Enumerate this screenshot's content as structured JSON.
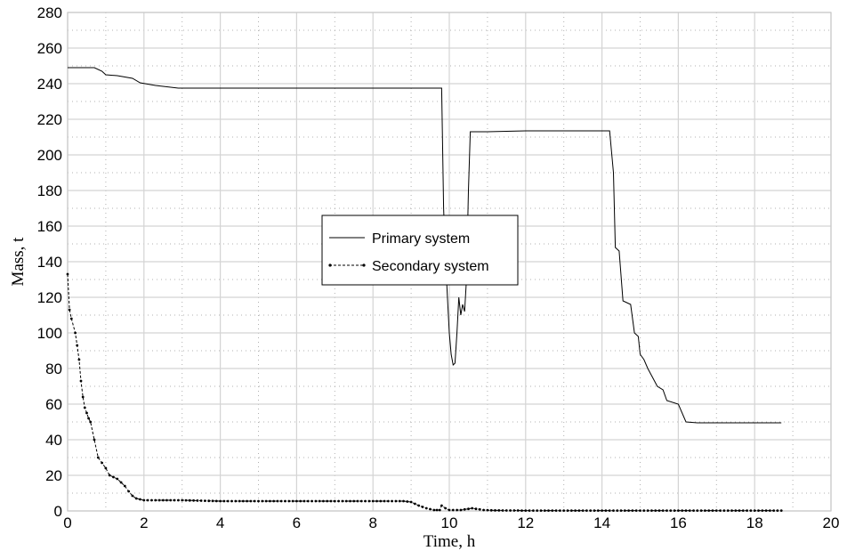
{
  "chart_data": {
    "type": "line",
    "title": "",
    "xlabel": "Time, h",
    "ylabel": "Mass, t",
    "xlim": [
      0,
      20
    ],
    "ylim": [
      0,
      280
    ],
    "xticks": [
      0,
      2,
      4,
      6,
      8,
      10,
      12,
      14,
      16,
      18,
      20
    ],
    "yticks": [
      0,
      20,
      40,
      60,
      80,
      100,
      120,
      140,
      160,
      180,
      200,
      220,
      240,
      260,
      280
    ],
    "grid": true,
    "grid_style": "dotted minor, solid major",
    "legend_position": "center",
    "series": [
      {
        "name": "Primary system",
        "style": "solid",
        "color": "#000000",
        "points": [
          [
            0,
            249
          ],
          [
            0.7,
            249
          ],
          [
            0.9,
            247
          ],
          [
            1.0,
            245
          ],
          [
            1.3,
            244.5
          ],
          [
            1.7,
            243
          ],
          [
            1.9,
            240.5
          ],
          [
            2.3,
            239
          ],
          [
            2.9,
            237.5
          ],
          [
            6.0,
            237.5
          ],
          [
            9.8,
            237.5
          ],
          [
            9.85,
            170
          ],
          [
            9.9,
            142
          ],
          [
            9.95,
            120
          ],
          [
            10.0,
            100
          ],
          [
            10.05,
            88
          ],
          [
            10.1,
            82
          ],
          [
            10.15,
            83
          ],
          [
            10.2,
            100
          ],
          [
            10.25,
            120
          ],
          [
            10.3,
            110
          ],
          [
            10.35,
            116
          ],
          [
            10.4,
            112
          ],
          [
            10.45,
            130
          ],
          [
            10.5,
            180
          ],
          [
            10.55,
            213
          ],
          [
            11.0,
            213
          ],
          [
            12.0,
            213.5
          ],
          [
            14.2,
            213.5
          ],
          [
            14.3,
            190
          ],
          [
            14.35,
            148
          ],
          [
            14.45,
            146
          ],
          [
            14.55,
            118
          ],
          [
            14.75,
            116
          ],
          [
            14.85,
            100
          ],
          [
            14.95,
            98
          ],
          [
            15.0,
            88
          ],
          [
            15.1,
            85
          ],
          [
            15.2,
            80
          ],
          [
            15.3,
            76
          ],
          [
            15.45,
            70
          ],
          [
            15.6,
            68
          ],
          [
            15.7,
            62
          ],
          [
            16.0,
            60
          ],
          [
            16.2,
            50
          ],
          [
            16.5,
            49.5
          ],
          [
            18.7,
            49.5
          ]
        ]
      },
      {
        "name": "Secondary system",
        "style": "dashed-with-markers",
        "color": "#000000",
        "points": [
          [
            0,
            133
          ],
          [
            0.05,
            113
          ],
          [
            0.1,
            108
          ],
          [
            0.2,
            100
          ],
          [
            0.25,
            93
          ],
          [
            0.3,
            85
          ],
          [
            0.35,
            73
          ],
          [
            0.4,
            64
          ],
          [
            0.45,
            58
          ],
          [
            0.5,
            55
          ],
          [
            0.55,
            52
          ],
          [
            0.6,
            50
          ],
          [
            0.7,
            40
          ],
          [
            0.8,
            30
          ],
          [
            0.9,
            27
          ],
          [
            1.0,
            24
          ],
          [
            1.1,
            20
          ],
          [
            1.2,
            19
          ],
          [
            1.3,
            18
          ],
          [
            1.4,
            16
          ],
          [
            1.5,
            14
          ],
          [
            1.6,
            11
          ],
          [
            1.7,
            8.5
          ],
          [
            1.8,
            7
          ],
          [
            1.9,
            6.5
          ],
          [
            2.0,
            6
          ],
          [
            3.0,
            6
          ],
          [
            4.0,
            5.5
          ],
          [
            5.0,
            5.5
          ],
          [
            6.0,
            5.5
          ],
          [
            7.0,
            5.5
          ],
          [
            8.0,
            5.5
          ],
          [
            8.8,
            5.5
          ],
          [
            9.0,
            5
          ],
          [
            9.2,
            3
          ],
          [
            9.4,
            1.5
          ],
          [
            9.6,
            0.5
          ],
          [
            9.75,
            0.5
          ],
          [
            9.8,
            3
          ],
          [
            9.9,
            1.5
          ],
          [
            10.0,
            0.5
          ],
          [
            10.3,
            0.5
          ],
          [
            10.6,
            1.5
          ],
          [
            10.9,
            0.5
          ],
          [
            11.2,
            0.3
          ],
          [
            12.0,
            0.2
          ],
          [
            14.0,
            0.2
          ],
          [
            16.0,
            0.2
          ],
          [
            18.7,
            0.2
          ]
        ]
      }
    ]
  }
}
